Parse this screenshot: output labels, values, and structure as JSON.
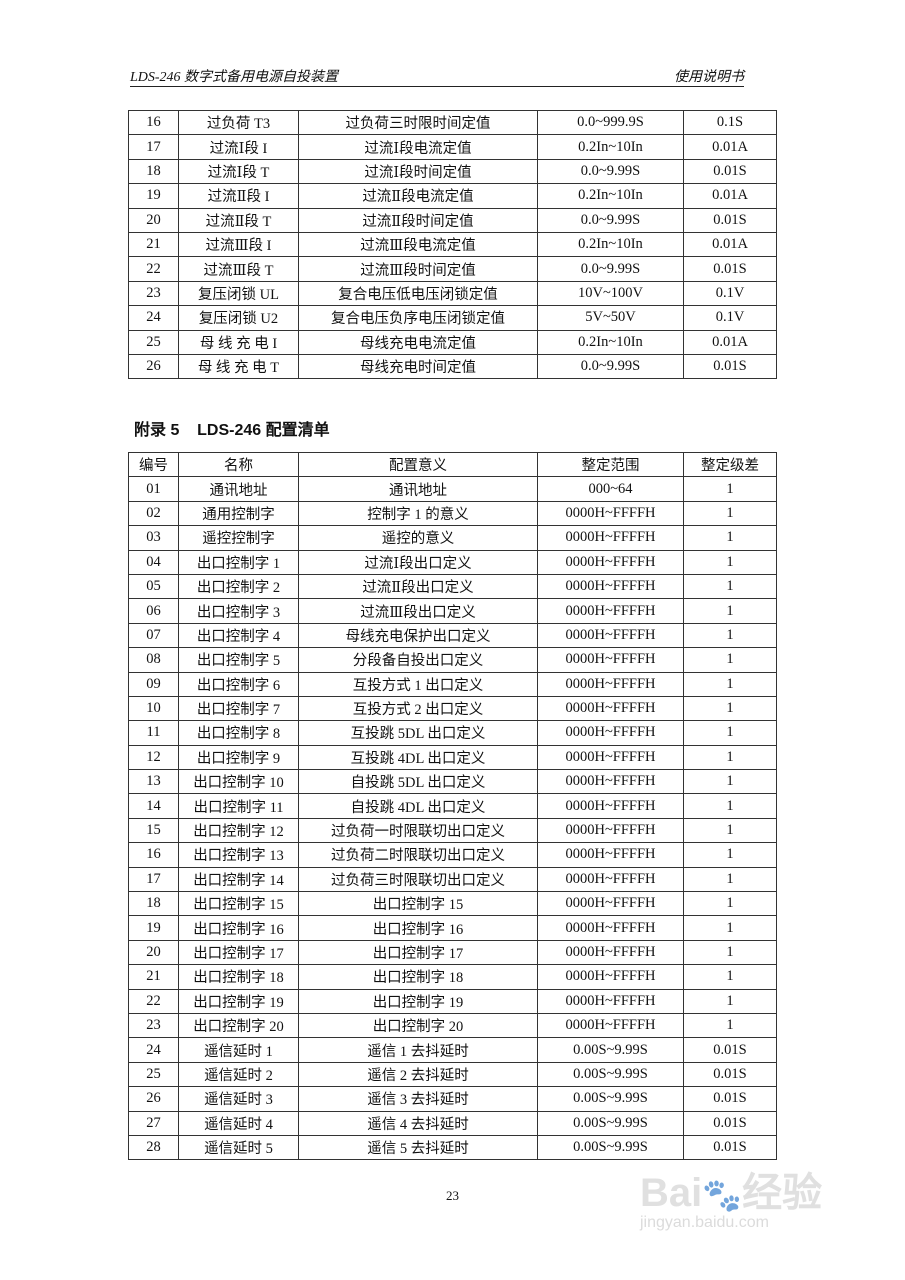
{
  "header": {
    "left": "LDS-246 数字式备用电源自投装置",
    "right": "使用说明书"
  },
  "table1": {
    "rows": [
      [
        "16",
        "过负荷 T3",
        "过负荷三时限时间定值",
        "0.0~999.9S",
        "0.1S"
      ],
      [
        "17",
        "过流Ⅰ段 I",
        "过流Ⅰ段电流定值",
        "0.2In~10In",
        "0.01A"
      ],
      [
        "18",
        "过流Ⅰ段 T",
        "过流Ⅰ段时间定值",
        "0.0~9.99S",
        "0.01S"
      ],
      [
        "19",
        "过流Ⅱ段 I",
        "过流Ⅱ段电流定值",
        "0.2In~10In",
        "0.01A"
      ],
      [
        "20",
        "过流Ⅱ段 T",
        "过流Ⅱ段时间定值",
        "0.0~9.99S",
        "0.01S"
      ],
      [
        "21",
        "过流Ⅲ段 I",
        "过流Ⅲ段电流定值",
        "0.2In~10In",
        "0.01A"
      ],
      [
        "22",
        "过流Ⅲ段 T",
        "过流Ⅲ段时间定值",
        "0.0~9.99S",
        "0.01S"
      ],
      [
        "23",
        "复压闭锁 UL",
        "复合电压低电压闭锁定值",
        "10V~100V",
        "0.1V"
      ],
      [
        "24",
        "复压闭锁 U2",
        "复合电压负序电压闭锁定值",
        "5V~50V",
        "0.1V"
      ],
      [
        "25",
        "母 线 充 电  I",
        "母线充电电流定值",
        "0.2In~10In",
        "0.01A"
      ],
      [
        "26",
        "母 线 充 电  T",
        "母线充电时间定值",
        "0.0~9.99S",
        "0.01S"
      ]
    ]
  },
  "section_title": "附录 5    LDS-246 配置清单",
  "table2": {
    "header": [
      "编号",
      "名称",
      "配置意义",
      "整定范围",
      "整定级差"
    ],
    "rows": [
      [
        "01",
        "通讯地址",
        "通讯地址",
        "000~64",
        "1"
      ],
      [
        "02",
        "通用控制字",
        "控制字 1 的意义",
        "0000H~FFFFH",
        "1"
      ],
      [
        "03",
        "遥控控制字",
        "遥控的意义",
        "0000H~FFFFH",
        "1"
      ],
      [
        "04",
        "出口控制字 1",
        "过流Ⅰ段出口定义",
        "0000H~FFFFH",
        "1"
      ],
      [
        "05",
        "出口控制字 2",
        "过流Ⅱ段出口定义",
        "0000H~FFFFH",
        "1"
      ],
      [
        "06",
        "出口控制字 3",
        "过流Ⅲ段出口定义",
        "0000H~FFFFH",
        "1"
      ],
      [
        "07",
        "出口控制字 4",
        "母线充电保护出口定义",
        "0000H~FFFFH",
        "1"
      ],
      [
        "08",
        "出口控制字 5",
        "分段备自投出口定义",
        "0000H~FFFFH",
        "1"
      ],
      [
        "09",
        "出口控制字 6",
        "互投方式 1 出口定义",
        "0000H~FFFFH",
        "1"
      ],
      [
        "10",
        "出口控制字 7",
        "互投方式 2 出口定义",
        "0000H~FFFFH",
        "1"
      ],
      [
        "11",
        "出口控制字 8",
        "互投跳 5DL 出口定义",
        "0000H~FFFFH",
        "1"
      ],
      [
        "12",
        "出口控制字 9",
        "互投跳 4DL 出口定义",
        "0000H~FFFFH",
        "1"
      ],
      [
        "13",
        "出口控制字 10",
        "自投跳 5DL 出口定义",
        "0000H~FFFFH",
        "1"
      ],
      [
        "14",
        "出口控制字 11",
        "自投跳 4DL 出口定义",
        "0000H~FFFFH",
        "1"
      ],
      [
        "15",
        "出口控制字 12",
        "过负荷一时限联切出口定义",
        "0000H~FFFFH",
        "1"
      ],
      [
        "16",
        "出口控制字 13",
        "过负荷二时限联切出口定义",
        "0000H~FFFFH",
        "1"
      ],
      [
        "17",
        "出口控制字 14",
        "过负荷三时限联切出口定义",
        "0000H~FFFFH",
        "1"
      ],
      [
        "18",
        "出口控制字 15",
        "出口控制字 15",
        "0000H~FFFFH",
        "1"
      ],
      [
        "19",
        "出口控制字 16",
        "出口控制字 16",
        "0000H~FFFFH",
        "1"
      ],
      [
        "20",
        "出口控制字 17",
        "出口控制字 17",
        "0000H~FFFFH",
        "1"
      ],
      [
        "21",
        "出口控制字 18",
        "出口控制字 18",
        "0000H~FFFFH",
        "1"
      ],
      [
        "22",
        "出口控制字 19",
        "出口控制字 19",
        "0000H~FFFFH",
        "1"
      ],
      [
        "23",
        "出口控制字 20",
        "出口控制字 20",
        "0000H~FFFFH",
        "1"
      ],
      [
        "24",
        "遥信延时 1",
        "遥信 1 去抖延时",
        "0.00S~9.99S",
        "0.01S"
      ],
      [
        "25",
        "遥信延时 2",
        "遥信 2 去抖延时",
        "0.00S~9.99S",
        "0.01S"
      ],
      [
        "26",
        "遥信延时 3",
        "遥信 3 去抖延时",
        "0.00S~9.99S",
        "0.01S"
      ],
      [
        "27",
        "遥信延时 4",
        "遥信 4 去抖延时",
        "0.00S~9.99S",
        "0.01S"
      ],
      [
        "28",
        "遥信延时 5",
        "遥信 5 去抖延时",
        "0.00S~9.99S",
        "0.01S"
      ]
    ]
  },
  "page_number": "23",
  "watermark": {
    "brand": "Baidu经验",
    "url": "jingyan.baidu.com"
  }
}
